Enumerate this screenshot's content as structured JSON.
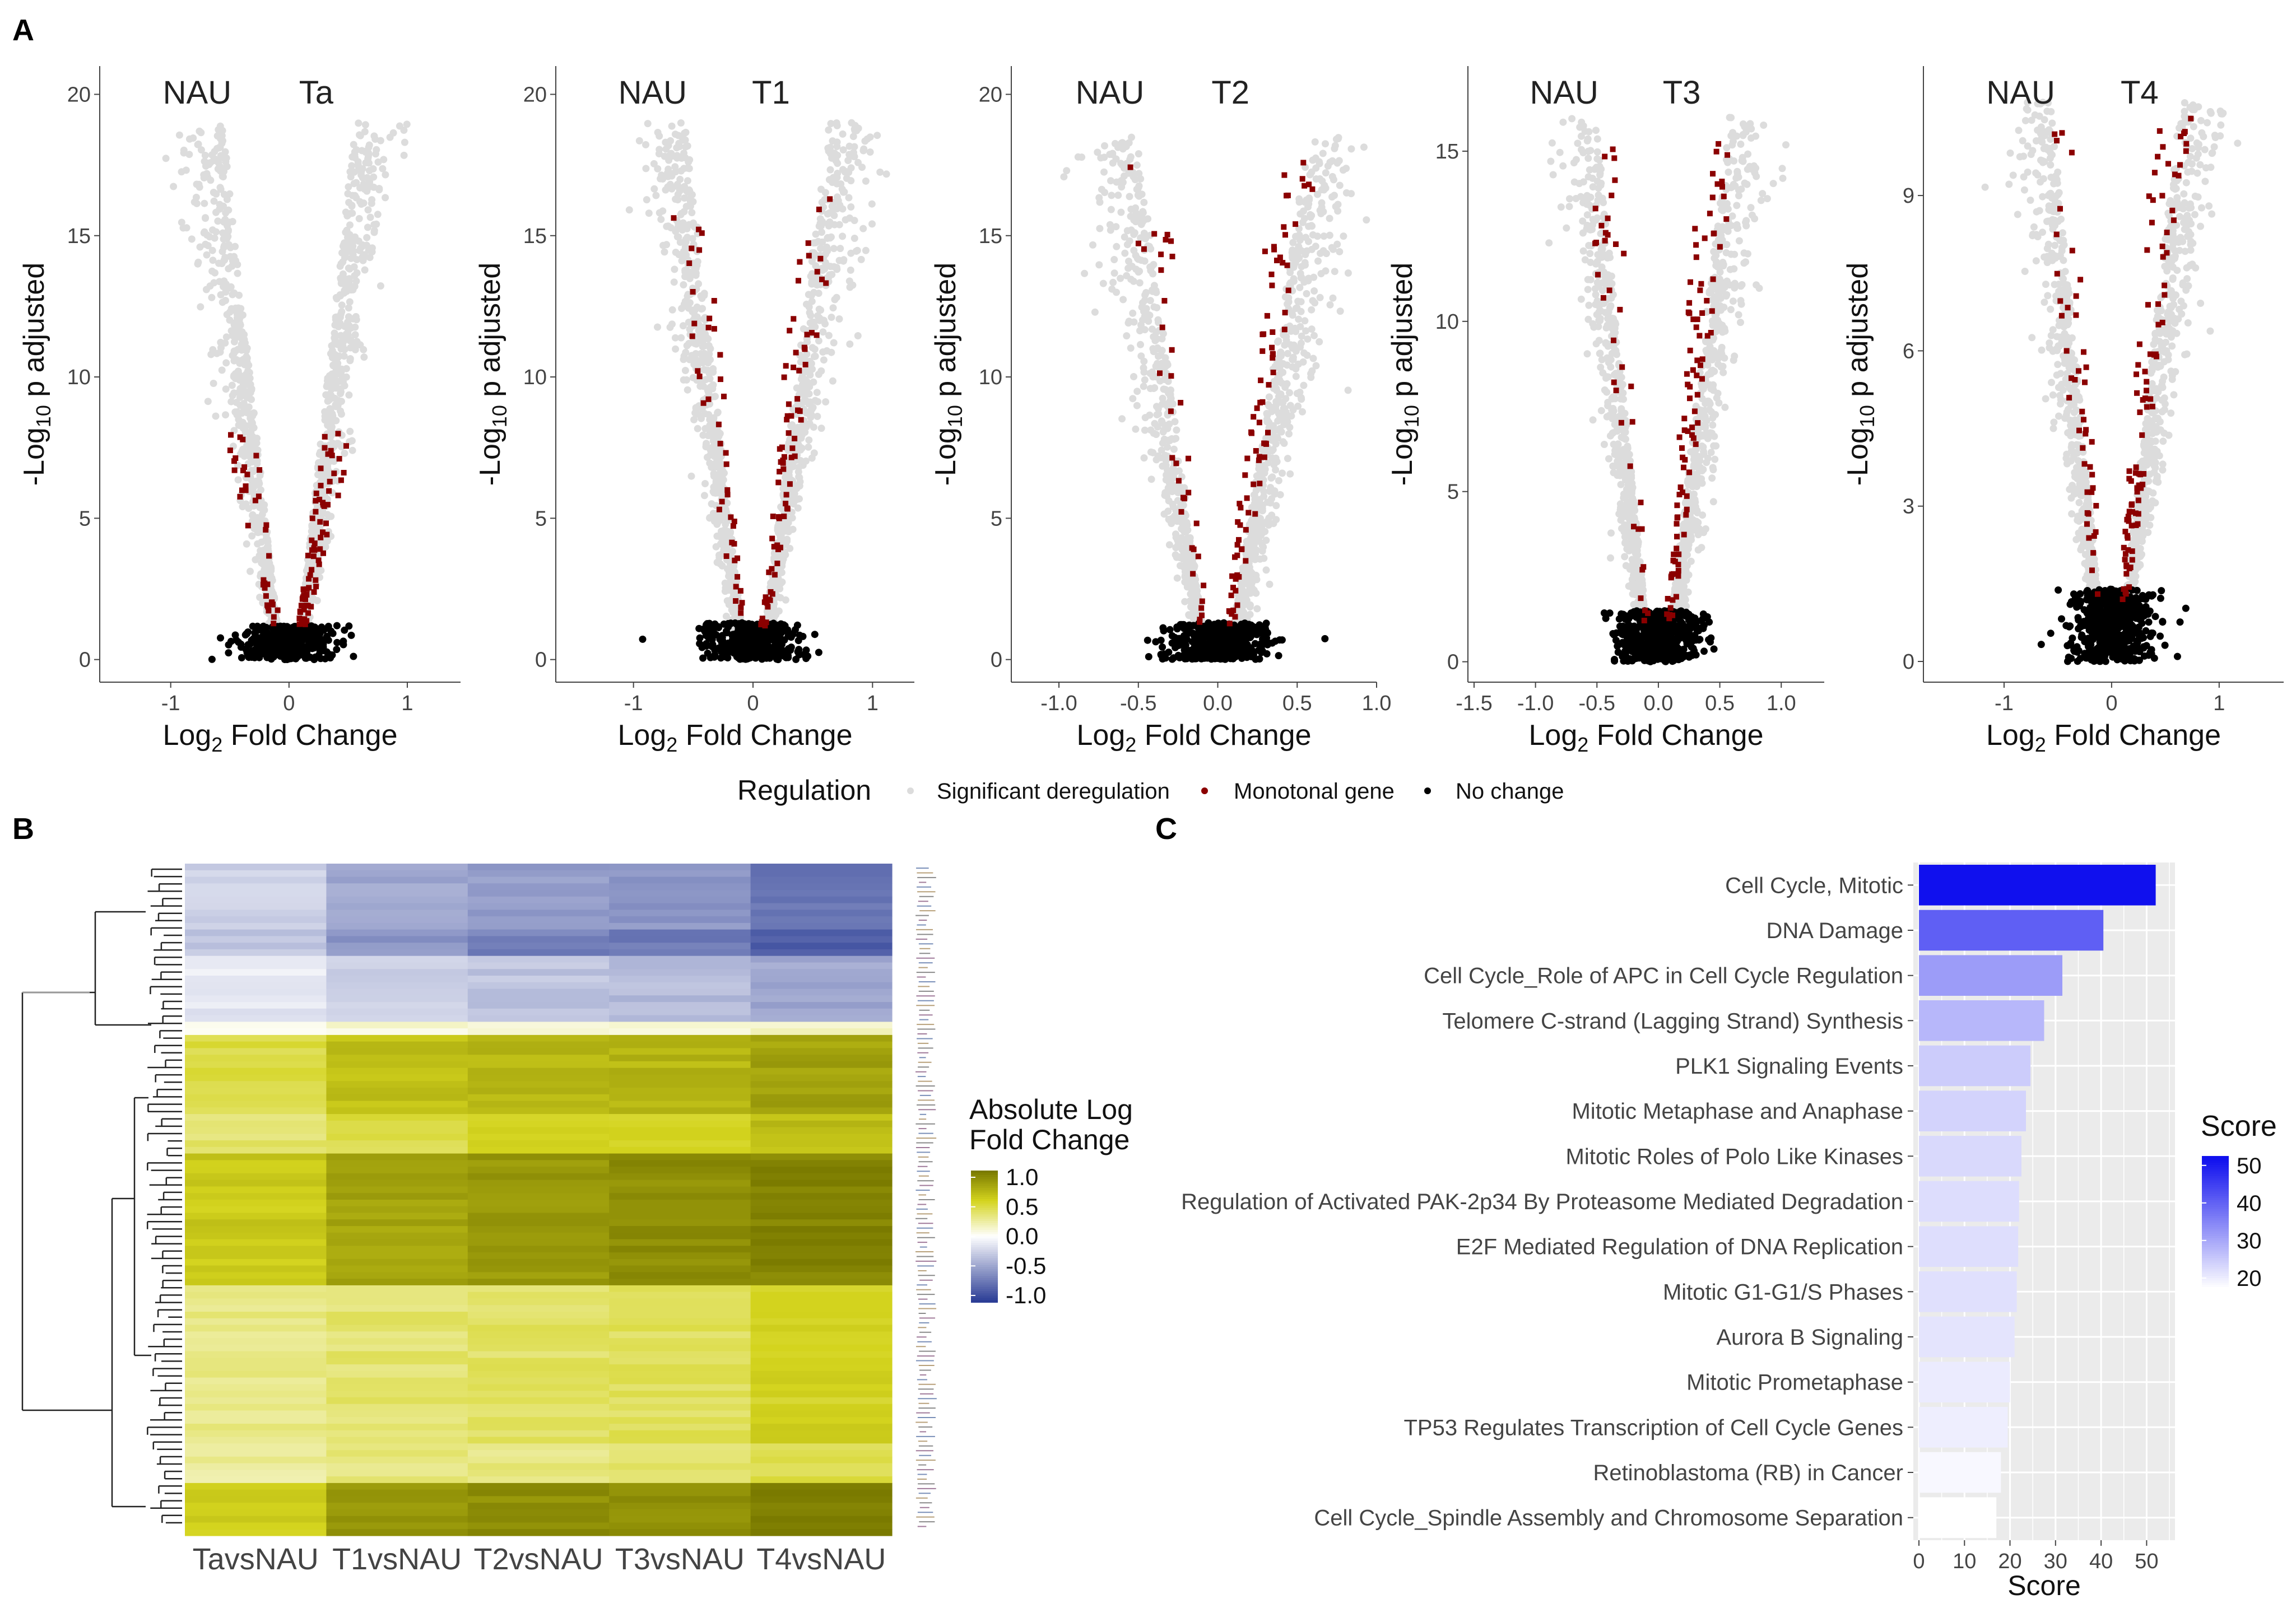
{
  "panel_labels": {
    "a": "A",
    "b": "B",
    "c": "C"
  },
  "volcano": {
    "x_label_main": "Log",
    "x_label_sub": "2",
    "x_label_rest": " Fold Change",
    "y_label_pre": "-Log",
    "y_label_sub": "10",
    "y_label_rest": " p adjusted",
    "group_left": "NAU",
    "legend": {
      "title": "Regulation",
      "items": [
        {
          "label": "Significant deregulation",
          "color": "#dcdcdc"
        },
        {
          "label": "Monotonal gene",
          "color": "#8b0000"
        },
        {
          "label": "No change",
          "color": "#000000"
        }
      ]
    }
  },
  "heatmap": {
    "columns": [
      "TavsNAU",
      "T1vsNAU",
      "T2vsNAU",
      "T3vsNAU",
      "T4vsNAU"
    ],
    "legend_title_1": "Absolute Log",
    "legend_title_2": "Fold Change",
    "legend_ticks": [
      "1.0",
      "0.5",
      "0.0",
      "-0.5",
      "-1.0"
    ],
    "colors": {
      "low": "#2c3e96",
      "mid": "#ffffff",
      "high": "#7a7a00"
    }
  },
  "chart_data": [
    {
      "type": "scatter",
      "panel": "A",
      "title": "NAU vs Ta",
      "group_right": "Ta",
      "xlabel": "Log2 Fold Change",
      "ylabel": "-Log10 p adjusted",
      "xlim": [
        -1.6,
        1.45
      ],
      "ylim": [
        -0.8,
        21
      ],
      "xticks": [
        -1,
        0,
        1
      ],
      "xtick_labels": [
        "-1",
        "0",
        "1"
      ],
      "yticks": [
        0,
        5,
        10,
        15,
        20
      ],
      "ytick_labels": [
        "0",
        "5",
        "10",
        "15",
        "20"
      ],
      "series": [
        {
          "name": "Significant deregulation",
          "count": 1400,
          "max_y": 19,
          "x_center_spread": 0.9
        },
        {
          "name": "Monotonal gene",
          "count": 110,
          "max_y": 8,
          "x_center_spread": 0.5
        },
        {
          "name": "No change",
          "count": 400,
          "max_y": 1.2,
          "x_center_spread": 0.55
        }
      ]
    },
    {
      "type": "scatter",
      "panel": "A",
      "title": "NAU vs T1",
      "group_right": "T1",
      "xlabel": "Log2 Fold Change",
      "ylabel": "-Log10 p adjusted",
      "xlim": [
        -1.65,
        1.35
      ],
      "ylim": [
        -0.8,
        21
      ],
      "xticks": [
        -1,
        0,
        1
      ],
      "xtick_labels": [
        "-1",
        "0",
        "1"
      ],
      "yticks": [
        0,
        5,
        10,
        15,
        20
      ],
      "ytick_labels": [
        "0",
        "5",
        "10",
        "15",
        "20"
      ],
      "series": [
        {
          "name": "Significant deregulation",
          "count": 1400,
          "max_y": 19,
          "x_center_spread": 0.9
        },
        {
          "name": "Monotonal gene",
          "count": 120,
          "max_y": 16.5,
          "x_center_spread": 0.7
        },
        {
          "name": "No change",
          "count": 400,
          "max_y": 1.3,
          "x_center_spread": 0.55
        }
      ]
    },
    {
      "type": "scatter",
      "panel": "A",
      "title": "NAU vs T2",
      "group_right": "T2",
      "xlabel": "Log2 Fold Change",
      "ylabel": "-Log10 p adjusted",
      "xlim": [
        -1.3,
        1.0
      ],
      "ylim": [
        -0.8,
        21
      ],
      "xticks": [
        -1.0,
        -0.5,
        0.0,
        0.5,
        1.0
      ],
      "xtick_labels": [
        "-1.0",
        "-0.5",
        "0.0",
        "0.5",
        "1.0"
      ],
      "yticks": [
        0,
        5,
        10,
        15,
        20
      ],
      "ytick_labels": [
        "0",
        "5",
        "10",
        "15",
        "20"
      ],
      "series": [
        {
          "name": "Significant deregulation",
          "count": 1300,
          "max_y": 18.5,
          "x_center_spread": 0.8
        },
        {
          "name": "Monotonal gene",
          "count": 120,
          "max_y": 18.2,
          "x_center_spread": 0.6
        },
        {
          "name": "No change",
          "count": 450,
          "max_y": 1.3,
          "x_center_spread": 0.45
        }
      ]
    },
    {
      "type": "scatter",
      "panel": "A",
      "title": "NAU vs T3",
      "group_right": "T3",
      "xlabel": "Log2 Fold Change",
      "ylabel": "-Log10 p adjusted",
      "xlim": [
        -1.55,
        1.35
      ],
      "ylim": [
        -0.6,
        17.5
      ],
      "xticks": [
        -1.5,
        -1.0,
        -0.5,
        0.0,
        0.5,
        1.0
      ],
      "xtick_labels": [
        "-1.5",
        "-1.0",
        "-0.5",
        "0.0",
        "0.5",
        "1.0"
      ],
      "yticks": [
        0,
        5,
        10,
        15
      ],
      "ytick_labels": [
        "0",
        "5",
        "10",
        "15"
      ],
      "series": [
        {
          "name": "Significant deregulation",
          "count": 1300,
          "max_y": 16,
          "x_center_spread": 0.8
        },
        {
          "name": "Monotonal gene",
          "count": 130,
          "max_y": 15.5,
          "x_center_spread": 0.6
        },
        {
          "name": "No change",
          "count": 500,
          "max_y": 1.5,
          "x_center_spread": 0.45
        }
      ]
    },
    {
      "type": "scatter",
      "panel": "A",
      "title": "NAU vs T4",
      "group_right": "T4",
      "xlabel": "Log2 Fold Change",
      "ylabel": "-Log10 p adjusted",
      "xlim": [
        -1.75,
        1.6
      ],
      "ylim": [
        -0.4,
        11.5
      ],
      "xticks": [
        -1,
        0,
        1
      ],
      "xtick_labels": [
        "-1",
        "0",
        "1"
      ],
      "yticks": [
        0,
        3,
        6,
        9
      ],
      "ytick_labels": [
        "0",
        "3",
        "6",
        "9"
      ],
      "series": [
        {
          "name": "Significant deregulation",
          "count": 1300,
          "max_y": 10.8,
          "x_center_spread": 0.9
        },
        {
          "name": "Monotonal gene",
          "count": 140,
          "max_y": 10.5,
          "x_center_spread": 0.7
        },
        {
          "name": "No change",
          "count": 550,
          "max_y": 1.4,
          "x_center_spread": 0.55
        }
      ]
    },
    {
      "type": "heatmap",
      "panel": "B",
      "columns": [
        "TavsNAU",
        "T1vsNAU",
        "T2vsNAU",
        "T3vsNAU",
        "T4vsNAU"
      ],
      "legend_title": "Absolute Log Fold Change",
      "value_range": [
        -1.0,
        1.0
      ],
      "row_blocks": [
        {
          "rows": 10,
          "values": [
            -0.25,
            -0.45,
            -0.5,
            -0.55,
            -0.7
          ]
        },
        {
          "rows": 4,
          "values": [
            -0.3,
            -0.55,
            -0.65,
            -0.7,
            -0.85
          ]
        },
        {
          "rows": 10,
          "values": [
            -0.12,
            -0.25,
            -0.3,
            -0.35,
            -0.45
          ]
        },
        {
          "rows": 2,
          "values": [
            0.05,
            0.1,
            0.1,
            0.1,
            0.15
          ]
        },
        {
          "rows": 12,
          "values": [
            0.45,
            0.65,
            0.7,
            0.7,
            0.8
          ]
        },
        {
          "rows": 6,
          "values": [
            0.35,
            0.45,
            0.55,
            0.55,
            0.65
          ]
        },
        {
          "rows": 20,
          "values": [
            0.6,
            0.8,
            0.85,
            0.9,
            0.95
          ]
        },
        {
          "rows": 24,
          "values": [
            0.3,
            0.35,
            0.38,
            0.4,
            0.55
          ]
        },
        {
          "rows": 6,
          "values": [
            0.25,
            0.3,
            0.3,
            0.35,
            0.45
          ]
        },
        {
          "rows": 8,
          "values": [
            0.6,
            0.85,
            0.9,
            0.9,
            1.0
          ]
        }
      ]
    },
    {
      "type": "bar",
      "panel": "C",
      "orientation": "horizontal",
      "xlabel": "Score",
      "xlim": [
        0,
        55
      ],
      "xticks": [
        0,
        10,
        20,
        30,
        40,
        50
      ],
      "xtick_labels": [
        "0",
        "10",
        "20",
        "30",
        "40",
        "50"
      ],
      "legend_title": "Score",
      "legend_ticks": [
        50,
        40,
        30,
        20
      ],
      "color_range": [
        17,
        52
      ],
      "colors": {
        "low": "#ffffff",
        "high": "#1010ee"
      },
      "categories": [
        "Cell Cycle, Mitotic",
        "DNA Damage",
        "Cell Cycle_Role of APC in Cell Cycle Regulation",
        "Telomere C-strand (Lagging Strand) Synthesis",
        "PLK1 Signaling Events",
        "Mitotic Metaphase and Anaphase",
        "Mitotic Roles of Polo Like Kinases",
        "Regulation of Activated PAK-2p34 By Proteasome Mediated Degradation",
        "E2F Mediated Regulation of DNA Replication",
        "Mitotic G1-G1/S Phases",
        "Aurora B Signaling",
        "Mitotic Prometaphase",
        "TP53 Regulates Transcription of Cell Cycle Genes",
        "Retinoblastoma (RB) in Cancer",
        "Cell Cycle_Spindle Assembly and Chromosome Separation"
      ],
      "values": [
        52,
        40.5,
        31.5,
        27.5,
        24.5,
        23.5,
        22.5,
        22,
        21.8,
        21.5,
        21,
        20,
        19.5,
        18,
        17
      ]
    }
  ]
}
